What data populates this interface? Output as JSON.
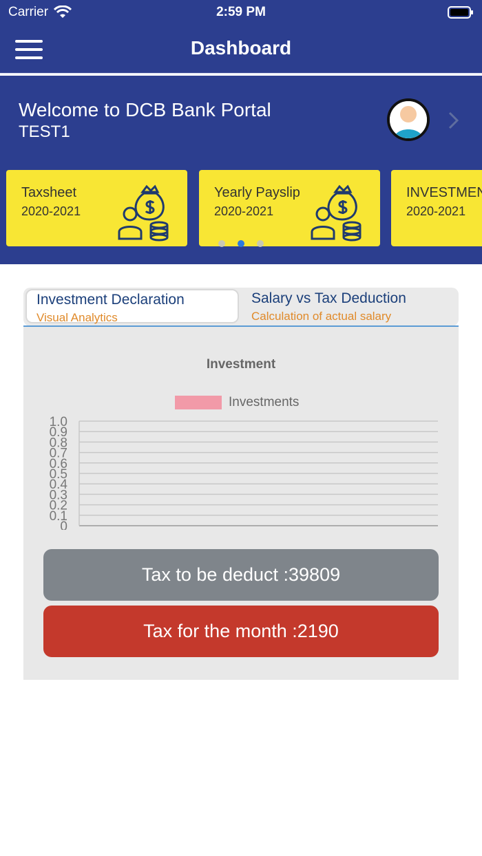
{
  "status_bar": {
    "carrier": "Carrier",
    "time": "2:59 PM"
  },
  "header": {
    "title": "Dashboard"
  },
  "welcome": {
    "title": "Welcome to DCB Bank Portal",
    "username": "TEST1"
  },
  "cards": [
    {
      "title": "Taxsheet",
      "year": "2020-2021",
      "icon": "money-bag-person-icon"
    },
    {
      "title": "Yearly Payslip",
      "year": "2020-2021",
      "icon": "money-bag-person-icon"
    },
    {
      "title": "INVESTMENT",
      "year": "2020-2021"
    }
  ],
  "carousel": {
    "page_count": 3,
    "active_index": 1,
    "active_color": "#2b7ae0"
  },
  "tabs": [
    {
      "label": "Investment Declaration",
      "sublabel": "Visual Analytics",
      "active": true
    },
    {
      "label": "Salary vs Tax Deduction",
      "sublabel": "Calculation of actual salary",
      "active": false
    }
  ],
  "chart_data": {
    "type": "bar",
    "title": "Investment",
    "legend": [
      {
        "name": "Investments",
        "color": "#f29aa8"
      }
    ],
    "series": [
      {
        "name": "Investments",
        "values": []
      }
    ],
    "categories": [],
    "ylim": [
      0,
      1.0
    ],
    "yticks": [
      "1.0",
      "0.9",
      "0.8",
      "0.7",
      "0.6",
      "0.5",
      "0.4",
      "0.3",
      "0.2",
      "0.1",
      "0"
    ],
    "grid": true,
    "legend_position": "top"
  },
  "buttons": {
    "tax_deduct": "Tax to be deduct :39809",
    "tax_month": "Tax for the month :2190"
  },
  "colors": {
    "brand": "#2c3e8f",
    "card": "#f8e634",
    "accent_orange": "#e08a2a",
    "danger": "#c4392c"
  }
}
